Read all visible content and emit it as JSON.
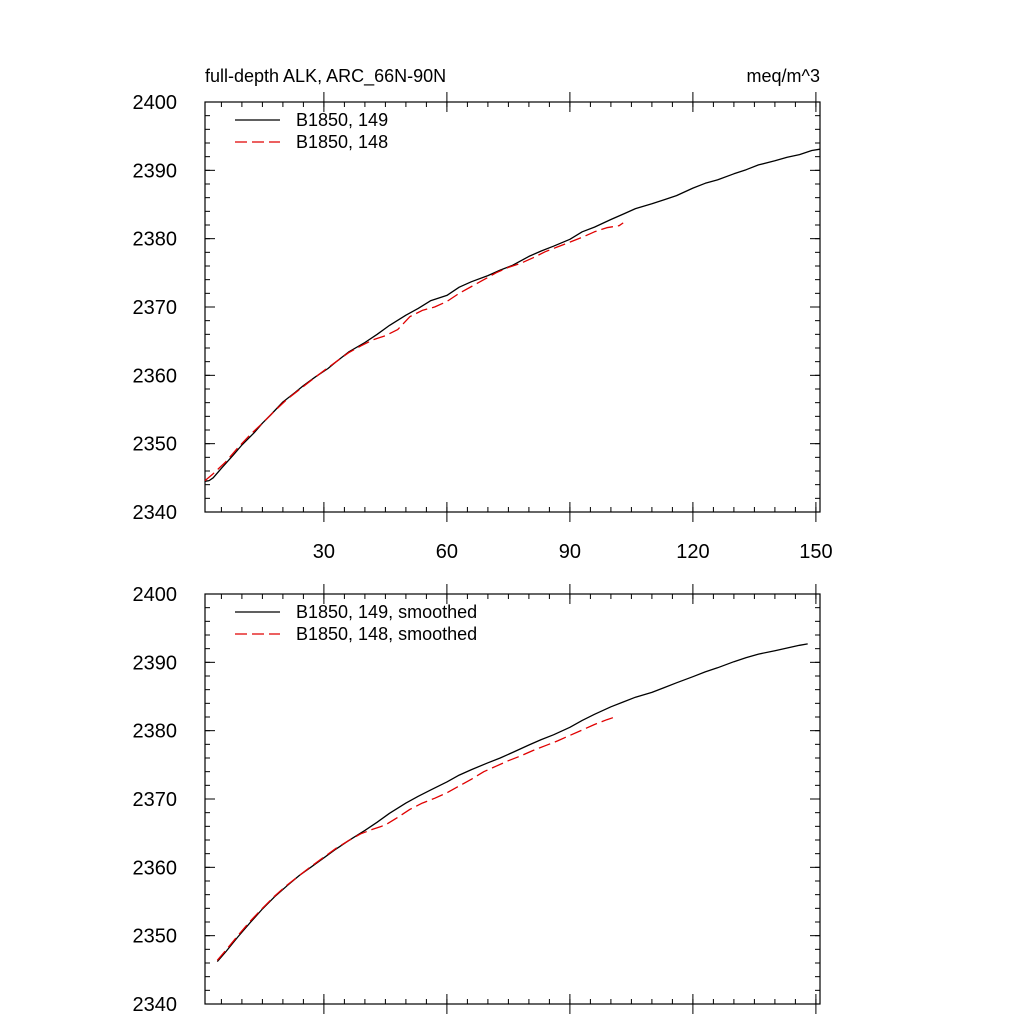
{
  "header": {
    "left_title": "full-depth ALK, ARC_66N-90N",
    "right_title": "meq/m^3"
  },
  "chart_data": [
    {
      "type": "line",
      "xlim": [
        1,
        151
      ],
      "ylim": [
        2340,
        2400
      ],
      "x_ticks": [
        30,
        60,
        90,
        120,
        150
      ],
      "y_ticks": [
        2340,
        2350,
        2360,
        2370,
        2380,
        2390,
        2400
      ],
      "show_x_tick_labels": true,
      "grid": false,
      "legend_position": "top-left",
      "series": [
        {
          "name": "B1850, 149",
          "color": "#000000",
          "dash": "solid",
          "x": [
            1,
            2,
            3,
            5,
            8,
            10,
            13,
            15,
            17,
            20,
            23,
            25,
            28,
            31,
            33,
            36,
            40,
            43,
            46,
            50,
            53,
            56,
            60,
            63,
            66,
            70,
            73,
            76,
            80,
            83,
            86,
            90,
            93,
            96,
            100,
            103,
            106,
            110,
            113,
            116,
            120,
            123,
            126,
            130,
            133,
            136,
            140,
            143,
            146,
            149,
            151
          ],
          "y": [
            2344.5,
            2344.6,
            2345.0,
            2346.4,
            2348.4,
            2349.8,
            2351.6,
            2353.0,
            2354.2,
            2356.1,
            2357.5,
            2358.5,
            2359.8,
            2361.0,
            2362.0,
            2363.4,
            2364.8,
            2366.0,
            2367.3,
            2368.8,
            2369.8,
            2370.9,
            2371.7,
            2372.9,
            2373.7,
            2374.6,
            2375.4,
            2376.1,
            2377.4,
            2378.2,
            2378.9,
            2379.9,
            2381.0,
            2381.7,
            2382.8,
            2383.6,
            2384.4,
            2385.1,
            2385.7,
            2386.3,
            2387.4,
            2388.1,
            2388.6,
            2389.5,
            2390.1,
            2390.8,
            2391.4,
            2391.9,
            2392.3,
            2392.9,
            2393.1
          ]
        },
        {
          "name": "B1850, 148",
          "color": "#e00000",
          "dash": "dashed",
          "x": [
            1,
            3,
            6,
            9,
            12,
            15,
            18,
            21,
            24,
            27,
            30,
            33,
            36,
            39,
            42,
            45,
            48,
            51,
            54,
            57,
            60,
            63,
            66,
            69,
            72,
            75,
            78,
            81,
            84,
            87,
            90,
            93,
            96,
            99,
            102,
            103
          ],
          "y": [
            2344.6,
            2345.6,
            2347.3,
            2349.4,
            2351.3,
            2353.0,
            2354.8,
            2356.5,
            2357.9,
            2359.3,
            2360.7,
            2362.0,
            2363.3,
            2364.3,
            2365.2,
            2365.8,
            2366.7,
            2368.6,
            2369.5,
            2370.0,
            2370.8,
            2372.0,
            2373.0,
            2374.0,
            2375.0,
            2375.8,
            2376.4,
            2377.2,
            2378.1,
            2378.8,
            2379.5,
            2380.2,
            2381.0,
            2381.6,
            2381.9,
            2382.3
          ]
        }
      ]
    },
    {
      "type": "line",
      "xlim": [
        1,
        151
      ],
      "ylim": [
        2340,
        2400
      ],
      "x_ticks": [
        30,
        60,
        90,
        120,
        150
      ],
      "y_ticks": [
        2340,
        2350,
        2360,
        2370,
        2380,
        2390,
        2400
      ],
      "show_x_tick_labels": false,
      "grid": false,
      "legend_position": "top-left",
      "series": [
        {
          "name": "B1850, 149, smoothed",
          "color": "#000000",
          "dash": "solid",
          "x": [
            4,
            6,
            9,
            12,
            15,
            18,
            21,
            24,
            27,
            30,
            33,
            36,
            40,
            43,
            46,
            50,
            53,
            56,
            60,
            63,
            66,
            70,
            73,
            76,
            80,
            83,
            86,
            90,
            93,
            96,
            100,
            103,
            106,
            110,
            113,
            116,
            120,
            123,
            126,
            130,
            133,
            136,
            140,
            143,
            146,
            148
          ],
          "y": [
            2346.2,
            2347.6,
            2349.8,
            2351.9,
            2353.9,
            2355.7,
            2357.3,
            2358.8,
            2360.1,
            2361.4,
            2362.7,
            2363.9,
            2365.4,
            2366.6,
            2367.9,
            2369.4,
            2370.4,
            2371.3,
            2372.5,
            2373.5,
            2374.3,
            2375.3,
            2376.0,
            2376.8,
            2377.9,
            2378.7,
            2379.4,
            2380.5,
            2381.5,
            2382.4,
            2383.5,
            2384.2,
            2384.9,
            2385.6,
            2386.3,
            2387.0,
            2387.9,
            2388.6,
            2389.2,
            2390.1,
            2390.7,
            2391.2,
            2391.7,
            2392.1,
            2392.5,
            2392.7
          ]
        },
        {
          "name": "B1850, 148, smoothed",
          "color": "#e00000",
          "dash": "dashed",
          "x": [
            4,
            6,
            9,
            12,
            15,
            18,
            21,
            24,
            27,
            30,
            33,
            36,
            39,
            42,
            45,
            48,
            51,
            54,
            57,
            60,
            63,
            66,
            69,
            72,
            75,
            78,
            81,
            84,
            87,
            90,
            93,
            96,
            99,
            101
          ],
          "y": [
            2346.4,
            2347.8,
            2350.0,
            2352.1,
            2354.0,
            2355.8,
            2357.4,
            2358.8,
            2360.2,
            2361.5,
            2362.8,
            2363.9,
            2364.9,
            2365.6,
            2366.2,
            2367.3,
            2368.5,
            2369.4,
            2370.1,
            2370.9,
            2371.9,
            2372.9,
            2374.0,
            2374.8,
            2375.6,
            2376.3,
            2377.1,
            2377.8,
            2378.5,
            2379.3,
            2380.1,
            2380.9,
            2381.6,
            2382.0
          ]
        }
      ]
    }
  ]
}
